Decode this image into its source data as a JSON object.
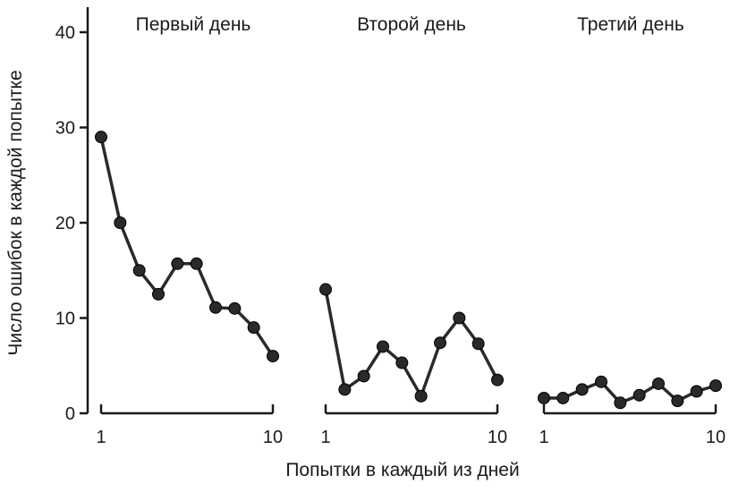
{
  "chart_data": {
    "type": "line",
    "ylabel": "Число ошибок в каждой попытке",
    "xlabel": "Попытки в каждый из дней",
    "ylim": [
      0,
      40
    ],
    "yticks": [
      0,
      10,
      20,
      30,
      40
    ],
    "xlim": [
      1,
      10
    ],
    "xticks": [
      "1",
      "10"
    ],
    "grid": false,
    "line_color": "#2a2a2a",
    "marker_color": "#2a2a2a",
    "panels": [
      {
        "title": "Первый день",
        "x": [
          1,
          2,
          3,
          4,
          5,
          6,
          7,
          8,
          9,
          10
        ],
        "values": [
          29,
          20,
          15,
          12.5,
          15.7,
          15.7,
          11.1,
          11,
          9,
          6
        ]
      },
      {
        "title": "Второй день",
        "x": [
          1,
          2,
          3,
          4,
          5,
          6,
          7,
          8,
          9,
          10
        ],
        "values": [
          13,
          2.5,
          3.9,
          7,
          5.3,
          1.8,
          7.4,
          10,
          7.3,
          3.5
        ]
      },
      {
        "title": "Третий день",
        "x": [
          1,
          2,
          3,
          4,
          5,
          6,
          7,
          8,
          9,
          10
        ],
        "values": [
          1.6,
          1.6,
          2.5,
          3.3,
          1.1,
          1.9,
          3.1,
          1.3,
          2.3,
          2.9
        ]
      }
    ]
  }
}
